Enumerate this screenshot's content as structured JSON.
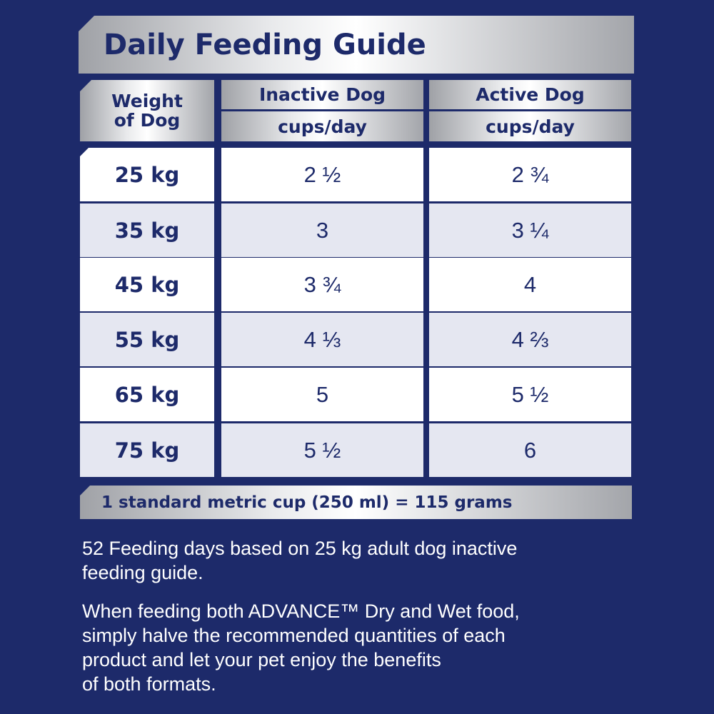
{
  "title": "Daily Feeding Guide",
  "table": {
    "header": {
      "weight": [
        "Weight",
        "of Dog"
      ],
      "inactive": {
        "label": "Inactive Dog",
        "unit": "cups/day"
      },
      "active": {
        "label": "Active Dog",
        "unit": "cups/day"
      }
    },
    "rows": [
      [
        "25 kg",
        "2 ½",
        "2 ¾"
      ],
      [
        "35 kg",
        "3",
        "3 ¼"
      ],
      [
        "45 kg",
        "3 ¾",
        "4"
      ],
      [
        "55 kg",
        "4 ⅓",
        "4 ⅔"
      ],
      [
        "65 kg",
        "5",
        "5 ½"
      ],
      [
        "75 kg",
        "5 ½",
        "6"
      ]
    ]
  },
  "footnote": "1 standard metric cup (250 ml) = 115 grams",
  "notes": [
    [
      "52 Feeding days based on 25 kg adult dog inactive",
      "feeding guide."
    ],
    [
      "When feeding both ADVANCE™ Dry and Wet food,",
      "simply halve the recommended quantities of each",
      "product and let your pet enjoy the benefits",
      "of both formats."
    ]
  ]
}
